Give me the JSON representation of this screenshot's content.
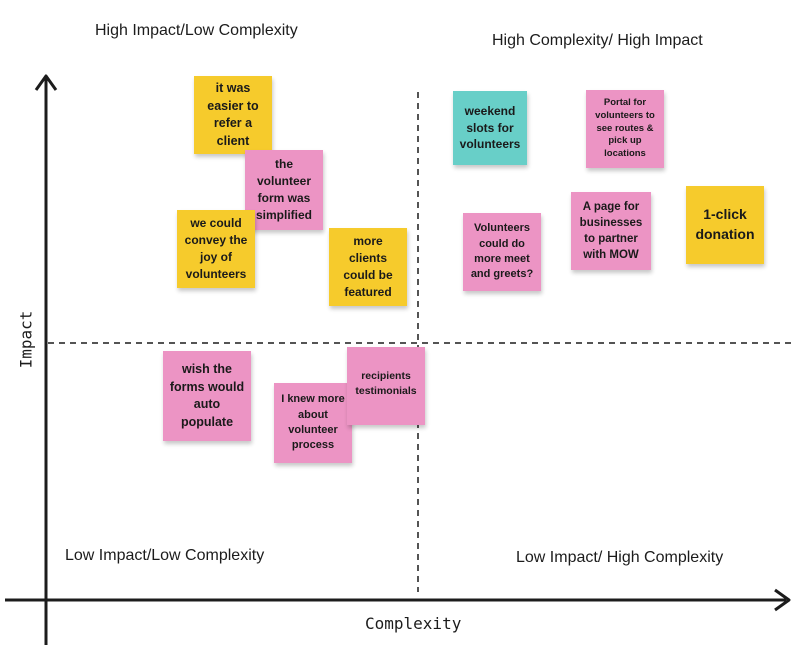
{
  "colors": {
    "yellow": "#f6cb2c",
    "pink": "#ec94c4",
    "teal": "#68cfc8",
    "ink": "#1c1c1c"
  },
  "axes": {
    "x_label": "Complexity",
    "y_label": "Impact"
  },
  "quadrants": {
    "top_left": "High Impact/Low Complexity",
    "top_right": "High Complexity/ High Impact",
    "bottom_left": "Low Impact/Low Complexity",
    "bottom_right": "Low Impact/ High Complexity"
  },
  "notes": [
    {
      "id": "refer-client",
      "text": "it was easier to refer a client",
      "color": "yellow"
    },
    {
      "id": "volunteer-form",
      "text": "the volunteer form was simplified",
      "color": "pink"
    },
    {
      "id": "convey-joy",
      "text": "we could convey the joy of volunteers",
      "color": "yellow"
    },
    {
      "id": "clients-featured",
      "text": "more clients could be featured",
      "color": "yellow"
    },
    {
      "id": "weekend-slots",
      "text": "weekend slots for volunteers",
      "color": "teal"
    },
    {
      "id": "portal-routes",
      "text": "Portal for volunteers to see routes & pick up locations",
      "color": "pink"
    },
    {
      "id": "meet-greets",
      "text": "Volunteers could do more meet and greets?",
      "color": "pink"
    },
    {
      "id": "business-page",
      "text": "A page for businesses to partner with MOW",
      "color": "pink"
    },
    {
      "id": "one-click",
      "text": "1-click donation",
      "color": "yellow"
    },
    {
      "id": "auto-populate",
      "text": "wish the forms would auto populate",
      "color": "pink"
    },
    {
      "id": "volunteer-process",
      "text": "I knew more about volunteer process",
      "color": "pink"
    },
    {
      "id": "testimonials",
      "text": "recipients testimonials",
      "color": "pink"
    }
  ]
}
